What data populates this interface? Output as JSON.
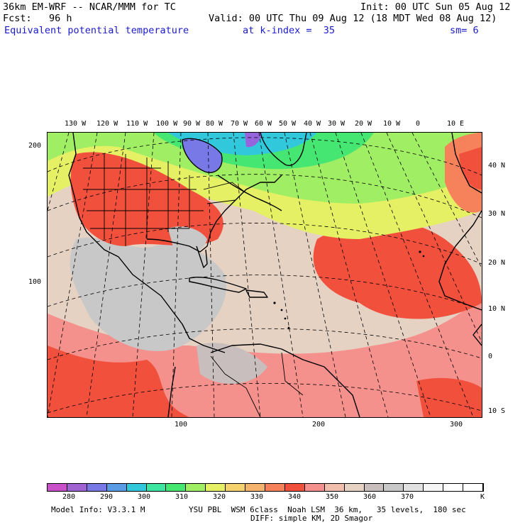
{
  "header": {
    "model_line": "36km EM-WRF -- NCAR/MMM for TC",
    "init_line": "Init: 00 UTC Sun 05 Aug 12",
    "fcst_line": "Fcst:   96 h",
    "valid_line": "Valid: 00 UTC Thu 09 Aug 12 (18 MDT Wed 08 Aug 12)",
    "field_name": "Equivalent potential temperature",
    "level": "at k-index =  35",
    "smoothing": "sm= 6"
  },
  "map": {
    "top_longitude_labels": [
      "130 W",
      "120 W",
      "110 W",
      "100 W",
      "90 W",
      "80 W",
      "70 W",
      "60 W",
      "50 W",
      "40 W",
      "30 W",
      "20 W",
      "10 W",
      "0",
      "10 E"
    ],
    "right_latitude_labels": [
      "40 N",
      "30 N",
      "20 N",
      "10 N",
      "0",
      "10 S"
    ],
    "left_grid_labels": [
      "200",
      "100"
    ],
    "bottom_grid_labels": [
      "100",
      "200",
      "300"
    ],
    "regions": [
      "north-america",
      "central-america",
      "south-america",
      "greenland",
      "europe",
      "africa",
      "caribbean-islands"
    ],
    "colors": {
      "theta_lt_280": "#c850c8",
      "theta_280_290": "#9664dc",
      "theta_290_300": "#6478e6",
      "theta_300_310": "#32c8dc",
      "theta_310_320": "#46e68c",
      "theta_320_330": "#b4f064",
      "theta_330_340": "#f0e650",
      "theta_340_350": "#f0503c",
      "theta_350_360": "#f59b87",
      "theta_360_370": "#c8c8c8",
      "coastline": "#000000"
    }
  },
  "colorbar": {
    "colors": [
      "#c850c8",
      "#a064d2",
      "#7878e6",
      "#5a9be6",
      "#32c8dc",
      "#3ce6a0",
      "#46e672",
      "#a0ee64",
      "#e6f064",
      "#f5d26e",
      "#f5b46e",
      "#f5825a",
      "#f0503c",
      "#f5918c",
      "#f0beaa",
      "#e6d2c3",
      "#c8bebe",
      "#c8c8c8",
      "#e1e1e1",
      "#f5f5f5",
      "#ffffff",
      "#ffffff"
    ],
    "tick_labels": [
      "280",
      "290",
      "300",
      "310",
      "320",
      "330",
      "340",
      "350",
      "360",
      "370"
    ],
    "unit": "K"
  },
  "footer": {
    "model_info": "Model Info: V3.3.1 M",
    "physics": "YSU PBL  WSM 6class  Noah LSM  36 km,   35 levels,  180 sec",
    "diffusion": "DIFF: simple KM, 2D Smagor"
  }
}
